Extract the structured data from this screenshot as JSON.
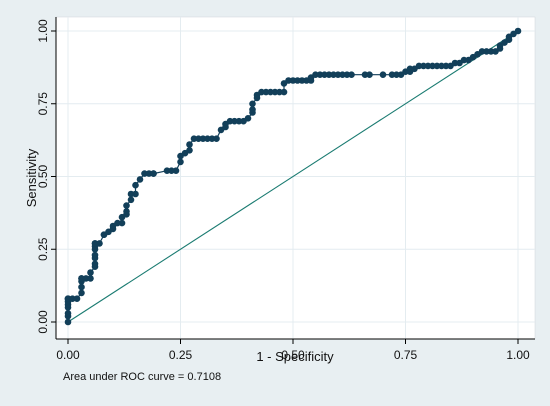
{
  "chart_data": {
    "type": "line",
    "xlabel": "1 - Specificity",
    "ylabel": "Sensitivity",
    "xlim": [
      0,
      1
    ],
    "ylim": [
      0,
      1
    ],
    "x_ticks": [
      "0.00",
      "0.25",
      "0.50",
      "0.75",
      "1.00"
    ],
    "y_ticks": [
      "0.00",
      "0.25",
      "0.50",
      "0.75",
      "1.00"
    ],
    "grid": true,
    "annotation": "Area under ROC curve = 0.7108",
    "colors": {
      "background": "#e8eff2",
      "plot_area": "#ffffff",
      "grid": "#e4ecf0",
      "curve": "#123f59",
      "reference": "#1a7b71"
    },
    "series": [
      {
        "style": "line-with-markers",
        "x": [
          0,
          0,
          0,
          0,
          0,
          0,
          0,
          0,
          0,
          0.01,
          0.02,
          0.03,
          0.03,
          0.03,
          0.03,
          0.03,
          0.04,
          0.05,
          0.05,
          0.06,
          0.06,
          0.06,
          0.06,
          0.06,
          0.06,
          0.06,
          0.06,
          0.07,
          0.08,
          0.08,
          0.09,
          0.1,
          0.1,
          0.11,
          0.12,
          0.12,
          0.13,
          0.13,
          0.13,
          0.14,
          0.14,
          0.15,
          0.15,
          0.16,
          0.17,
          0.18,
          0.19,
          0.19,
          0.22,
          0.23,
          0.24,
          0.25,
          0.25,
          0.26,
          0.27,
          0.27,
          0.28,
          0.29,
          0.3,
          0.31,
          0.32,
          0.33,
          0.34,
          0.35,
          0.35,
          0.36,
          0.37,
          0.38,
          0.39,
          0.4,
          0.41,
          0.41,
          0.41,
          0.42,
          0.42,
          0.43,
          0.44,
          0.45,
          0.46,
          0.47,
          0.48,
          0.48,
          0.49,
          0.5,
          0.51,
          0.52,
          0.53,
          0.54,
          0.54,
          0.55,
          0.56,
          0.57,
          0.58,
          0.59,
          0.6,
          0.61,
          0.62,
          0.63,
          0.66,
          0.67,
          0.7,
          0.72,
          0.73,
          0.74,
          0.75,
          0.76,
          0.76,
          0.77,
          0.78,
          0.79,
          0.8,
          0.81,
          0.82,
          0.83,
          0.84,
          0.85,
          0.86,
          0.87,
          0.88,
          0.89,
          0.9,
          0.91,
          0.92,
          0.93,
          0.94,
          0.95,
          0.96,
          0.96,
          0.97,
          0.98,
          0.98,
          0.99,
          1
        ],
        "y": [
          0,
          0.02,
          0.03,
          0.05,
          0.06,
          0.07,
          0.08,
          0.08,
          0.08,
          0.08,
          0.08,
          0.1,
          0.12,
          0.14,
          0.15,
          0.15,
          0.15,
          0.15,
          0.17,
          0.19,
          0.2,
          0.22,
          0.23,
          0.25,
          0.26,
          0.27,
          0.27,
          0.27,
          0.3,
          0.3,
          0.31,
          0.32,
          0.33,
          0.34,
          0.34,
          0.36,
          0.37,
          0.38,
          0.4,
          0.42,
          0.44,
          0.44,
          0.47,
          0.49,
          0.51,
          0.51,
          0.51,
          0.51,
          0.52,
          0.52,
          0.52,
          0.55,
          0.57,
          0.58,
          0.59,
          0.61,
          0.63,
          0.63,
          0.63,
          0.63,
          0.63,
          0.63,
          0.66,
          0.67,
          0.68,
          0.69,
          0.69,
          0.69,
          0.69,
          0.7,
          0.72,
          0.73,
          0.75,
          0.77,
          0.78,
          0.79,
          0.79,
          0.79,
          0.79,
          0.79,
          0.79,
          0.82,
          0.83,
          0.83,
          0.83,
          0.83,
          0.83,
          0.83,
          0.84,
          0.85,
          0.85,
          0.85,
          0.85,
          0.85,
          0.85,
          0.85,
          0.85,
          0.85,
          0.85,
          0.85,
          0.85,
          0.85,
          0.85,
          0.85,
          0.86,
          0.86,
          0.87,
          0.87,
          0.88,
          0.88,
          0.88,
          0.88,
          0.88,
          0.88,
          0.88,
          0.88,
          0.89,
          0.89,
          0.9,
          0.9,
          0.91,
          0.92,
          0.93,
          0.93,
          0.93,
          0.93,
          0.94,
          0.95,
          0.96,
          0.97,
          0.98,
          0.99,
          1
        ]
      },
      {
        "style": "reference-line",
        "x": [
          0,
          1
        ],
        "y": [
          0,
          1
        ]
      }
    ]
  }
}
